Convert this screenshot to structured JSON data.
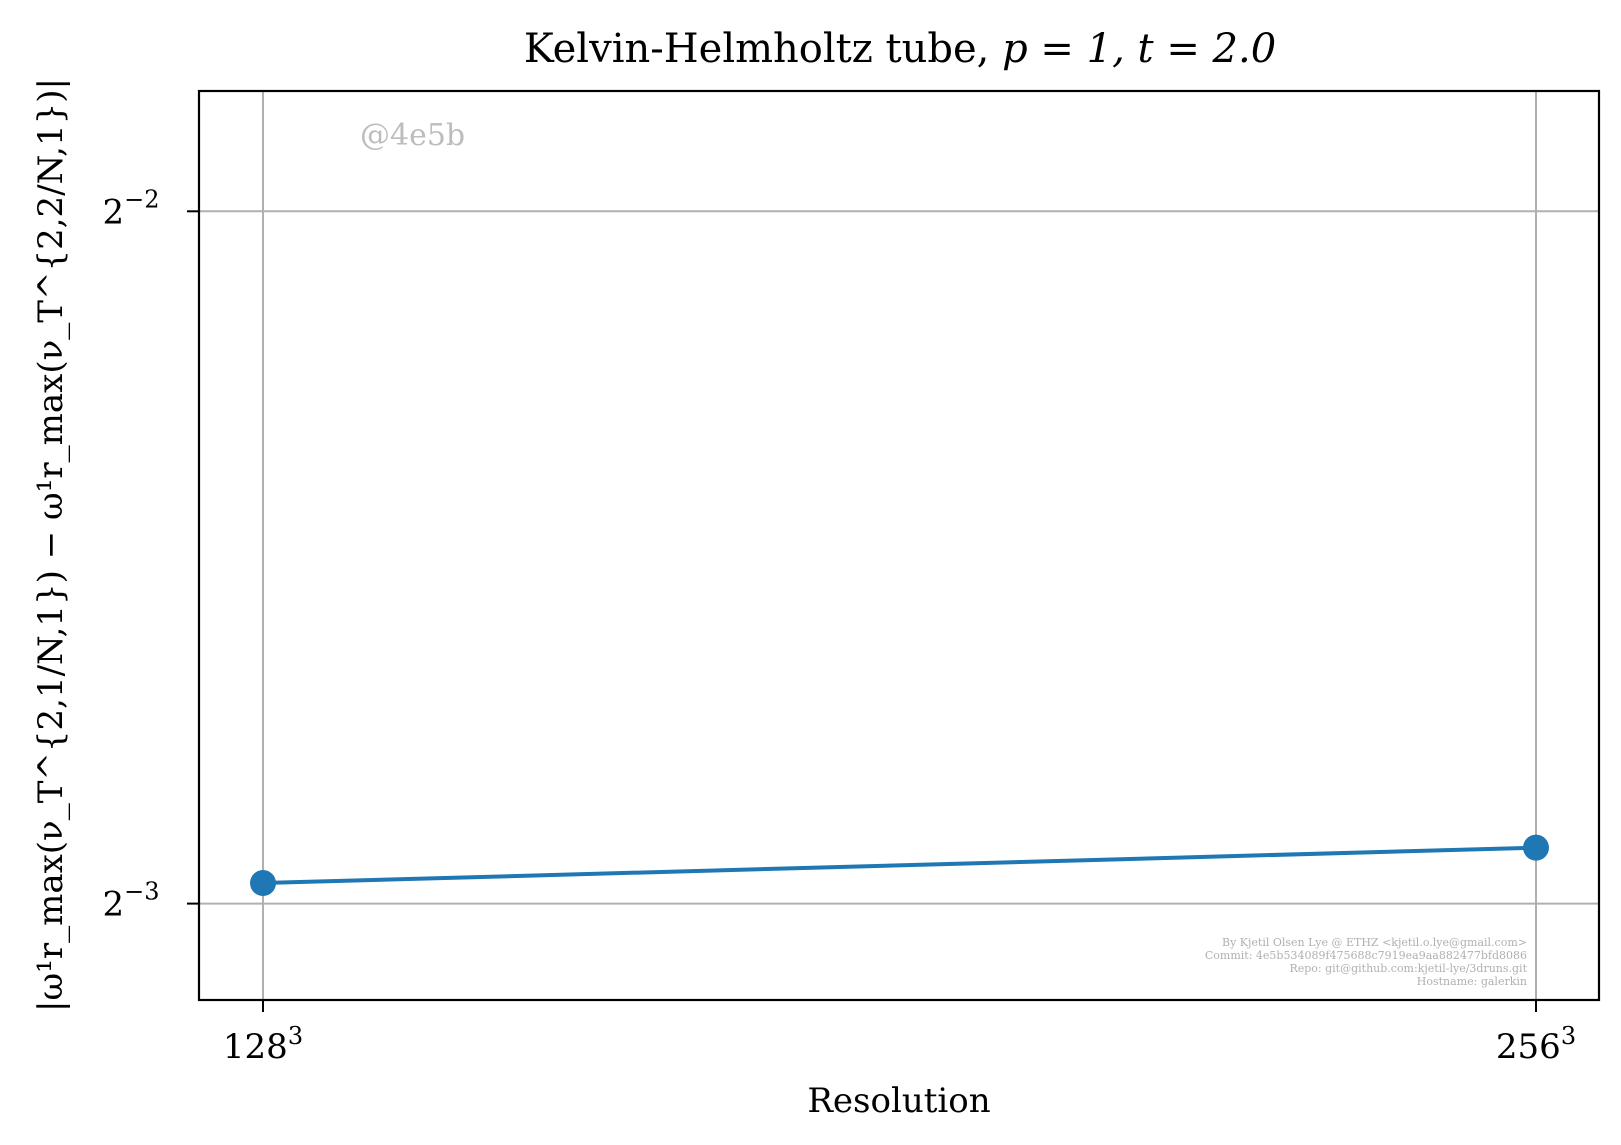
{
  "chart_data": {
    "type": "line",
    "title_text": "Kelvin-Helmholtz tube, ",
    "title_math": "p = 1, t = 2.0",
    "xlabel": "Resolution",
    "ylabel": "|ω¹r_max(ν_T^{2,1/N,1}) − ω¹r_max(ν_T^{2,2/N,1})|",
    "x_scale": "log2",
    "y_scale": "log2",
    "x_ticks": [
      {
        "base": "128",
        "exp": "3"
      },
      {
        "base": "256",
        "exp": "3"
      }
    ],
    "y_ticks": [
      {
        "base": "2",
        "exp": "−2",
        "value": 0.25
      },
      {
        "base": "2",
        "exp": "−3",
        "value": 0.125
      }
    ],
    "ylim": [
      0.1135,
      0.282
    ],
    "grid": true,
    "series": [
      {
        "color": "#1f77b4",
        "x": [
          "128³",
          "256³"
        ],
        "values": [
          0.1276,
          0.1322
        ]
      }
    ],
    "watermark": "@4e5b",
    "credits": [
      "By Kjetil Olsen Lye @ ETHZ <kjetil.o.lye@gmail.com>",
      "Commit: 4e5b534089f475688c7919ea9aa882477bfd8086",
      "Repo: git@github.com:kjetil-lye/3druns.git",
      "Hostname: galerkin"
    ]
  }
}
